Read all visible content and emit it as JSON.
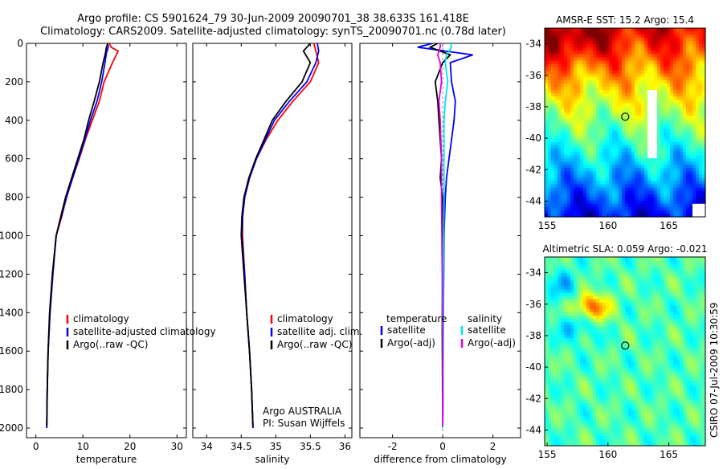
{
  "title": {
    "line1": "Argo profile: CS 5901624_79 30-Jun-2009 20090701_38 38.633S 161.418E",
    "line2": "Climatology: CARS2009. Satellite-adjusted climatology: synTS_20090701.nc (0.78d later)"
  },
  "colors": {
    "red": "#ff0000",
    "blue": "#0000ff",
    "black": "#000000",
    "cyan": "#00e5e5",
    "magenta": "#e000e0"
  },
  "yaxis": {
    "ticks": [
      0,
      200,
      400,
      600,
      800,
      1000,
      1200,
      1400,
      1600,
      1800,
      2000
    ],
    "range": [
      0,
      2050
    ]
  },
  "chart_data": [
    {
      "type": "line",
      "name": "temperature-panel",
      "xlabel": "temperature",
      "xlim": [
        -2,
        32
      ],
      "xticks": [
        0,
        10,
        20,
        30
      ],
      "legend": [
        "climatology",
        "satellite-adjusted climatology",
        "Argo(..raw -QC)"
      ],
      "series": [
        {
          "name": "climatology",
          "color": "red",
          "x": [
            15.6,
            16.0,
            17.5,
            16.3,
            14.5,
            13.5,
            12.0,
            10.5,
            9.2,
            7.8,
            6.5,
            5.5,
            4.3,
            3.6,
            3.0,
            2.6,
            2.4,
            2.3
          ],
          "y": [
            0,
            20,
            40,
            100,
            200,
            300,
            400,
            500,
            600,
            700,
            800,
            900,
            1000,
            1200,
            1400,
            1600,
            1800,
            2000
          ]
        },
        {
          "name": "satellite",
          "color": "blue",
          "x": [
            15.2,
            15.4,
            15.0,
            14.7,
            14.0,
            13.0,
            11.6,
            10.4,
            9.1,
            7.8,
            6.5,
            5.4,
            4.3,
            3.6,
            3.0,
            2.6,
            2.4,
            2.3
          ],
          "y": [
            0,
            20,
            50,
            100,
            200,
            300,
            400,
            500,
            600,
            700,
            800,
            900,
            1000,
            1200,
            1400,
            1600,
            1800,
            2000
          ]
        },
        {
          "name": "argo",
          "color": "black",
          "x": [
            15.3,
            15.0,
            14.8,
            14.3,
            13.5,
            12.4,
            11.2,
            10.2,
            8.9,
            7.6,
            6.3,
            5.3,
            4.3,
            3.5,
            2.9,
            2.6,
            2.4,
            2.3
          ],
          "y": [
            0,
            20,
            50,
            100,
            200,
            300,
            400,
            500,
            600,
            700,
            800,
            900,
            1000,
            1200,
            1400,
            1600,
            1800,
            1990
          ]
        }
      ]
    },
    {
      "type": "line",
      "name": "salinity-panel",
      "xlabel": "salinity",
      "xlim": [
        33.8,
        36.1
      ],
      "xticks": [
        34,
        34.5,
        35,
        35.5,
        36
      ],
      "legend": [
        "climatology",
        "satellite adj. clim.",
        "Argo(..raw -QC)"
      ],
      "annotation": [
        "Argo AUSTRALIA",
        "PI: Susan Wijffels"
      ],
      "series": [
        {
          "name": "climatology",
          "color": "red",
          "x": [
            35.55,
            35.58,
            35.62,
            35.5,
            35.25,
            35.03,
            34.86,
            34.72,
            34.62,
            34.55,
            34.52,
            34.52,
            34.55,
            34.58,
            34.62,
            34.65,
            34.67
          ],
          "y": [
            0,
            40,
            100,
            200,
            300,
            400,
            500,
            600,
            700,
            800,
            900,
            1000,
            1200,
            1400,
            1600,
            1800,
            2000
          ]
        },
        {
          "name": "satellite",
          "color": "blue",
          "x": [
            35.6,
            35.62,
            35.58,
            35.45,
            35.2,
            34.98,
            34.85,
            34.72,
            34.62,
            34.55,
            34.52,
            34.51,
            34.55,
            34.58,
            34.62,
            34.65,
            34.67
          ],
          "y": [
            0,
            40,
            100,
            200,
            300,
            400,
            500,
            600,
            700,
            800,
            900,
            1000,
            1200,
            1400,
            1600,
            1800,
            2000
          ]
        },
        {
          "name": "argo",
          "color": "black",
          "x": [
            35.5,
            35.4,
            35.5,
            35.38,
            35.15,
            34.95,
            34.83,
            34.71,
            34.61,
            34.54,
            34.51,
            34.5,
            34.54,
            34.58,
            34.62,
            34.65,
            34.67
          ],
          "y": [
            0,
            40,
            100,
            200,
            300,
            400,
            500,
            600,
            700,
            800,
            900,
            1000,
            1200,
            1400,
            1600,
            1800,
            1990
          ]
        }
      ]
    },
    {
      "type": "line",
      "name": "difference-panel",
      "xlabel": "difference from climatology",
      "xlim": [
        -3.3,
        3.1
      ],
      "xticks": [
        -2,
        0,
        2
      ],
      "legend_headers": [
        "temperature",
        "salinity"
      ],
      "legend": [
        "satellite",
        "Argo(-adj)",
        "satellite",
        "Argo(-adj)"
      ],
      "series": [
        {
          "name": "temp satellite",
          "color": "blue",
          "x": [
            -0.4,
            -1.0,
            1.2,
            0.3,
            0.35,
            0.5,
            0.45,
            0.35,
            0.25,
            0.15,
            0.1,
            0.05,
            0.02,
            0.0
          ],
          "y": [
            0,
            20,
            60,
            100,
            200,
            300,
            400,
            500,
            600,
            700,
            800,
            1000,
            1500,
            2000
          ]
        },
        {
          "name": "temp Argo(-adj)",
          "color": "black",
          "x": [
            -0.2,
            -0.5,
            0.3,
            0.0,
            -0.3,
            -0.2,
            -0.15,
            -0.1,
            -0.05,
            -0.1,
            0.0,
            0.0,
            -0.02,
            0.0
          ],
          "y": [
            0,
            20,
            60,
            100,
            200,
            300,
            400,
            500,
            600,
            700,
            800,
            1000,
            1500,
            1990
          ]
        },
        {
          "name": "sal satellite",
          "color": "cyan",
          "x": [
            0.3,
            0.35,
            0.15,
            0.1,
            0.2,
            0.1,
            0.05,
            0.05,
            0.05,
            0.02,
            0.02,
            0.0
          ],
          "y": [
            0,
            20,
            60,
            100,
            200,
            300,
            400,
            600,
            800,
            1200,
            1600,
            2000
          ]
        },
        {
          "name": "sal Argo(-adj)",
          "color": "magenta",
          "x": [
            -0.1,
            -0.1,
            -0.2,
            -0.1,
            -0.05,
            -0.15,
            -0.1,
            -0.05,
            -0.05,
            -0.02,
            0.0,
            0.0
          ],
          "y": [
            0,
            20,
            60,
            100,
            200,
            300,
            400,
            600,
            800,
            1200,
            1600,
            1990
          ]
        }
      ]
    },
    {
      "type": "heatmap",
      "name": "sst-map",
      "title": "AMSR-E SST: 15.2  Argo: 15.4",
      "xlim": [
        154.8,
        168
      ],
      "ylim": [
        -45,
        -33
      ],
      "xticks": [
        155,
        160,
        165
      ],
      "yticks": [
        -34,
        -36,
        -38,
        -40,
        -42,
        -44
      ],
      "argo_position": {
        "lon": 161.418,
        "lat": -38.633
      }
    },
    {
      "type": "heatmap",
      "name": "sla-map",
      "title": "Altimetric SLA: 0.059  Argo: -0.021",
      "xlim": [
        154.8,
        168
      ],
      "ylim": [
        -45,
        -33
      ],
      "xticks": [
        155,
        160,
        165
      ],
      "yticks": [
        -34,
        -36,
        -38,
        -40,
        -42,
        -44
      ],
      "argo_position": {
        "lon": 161.418,
        "lat": -38.633
      }
    }
  ],
  "footer": "CSIRO 07-Jul-2009 10:30:59"
}
